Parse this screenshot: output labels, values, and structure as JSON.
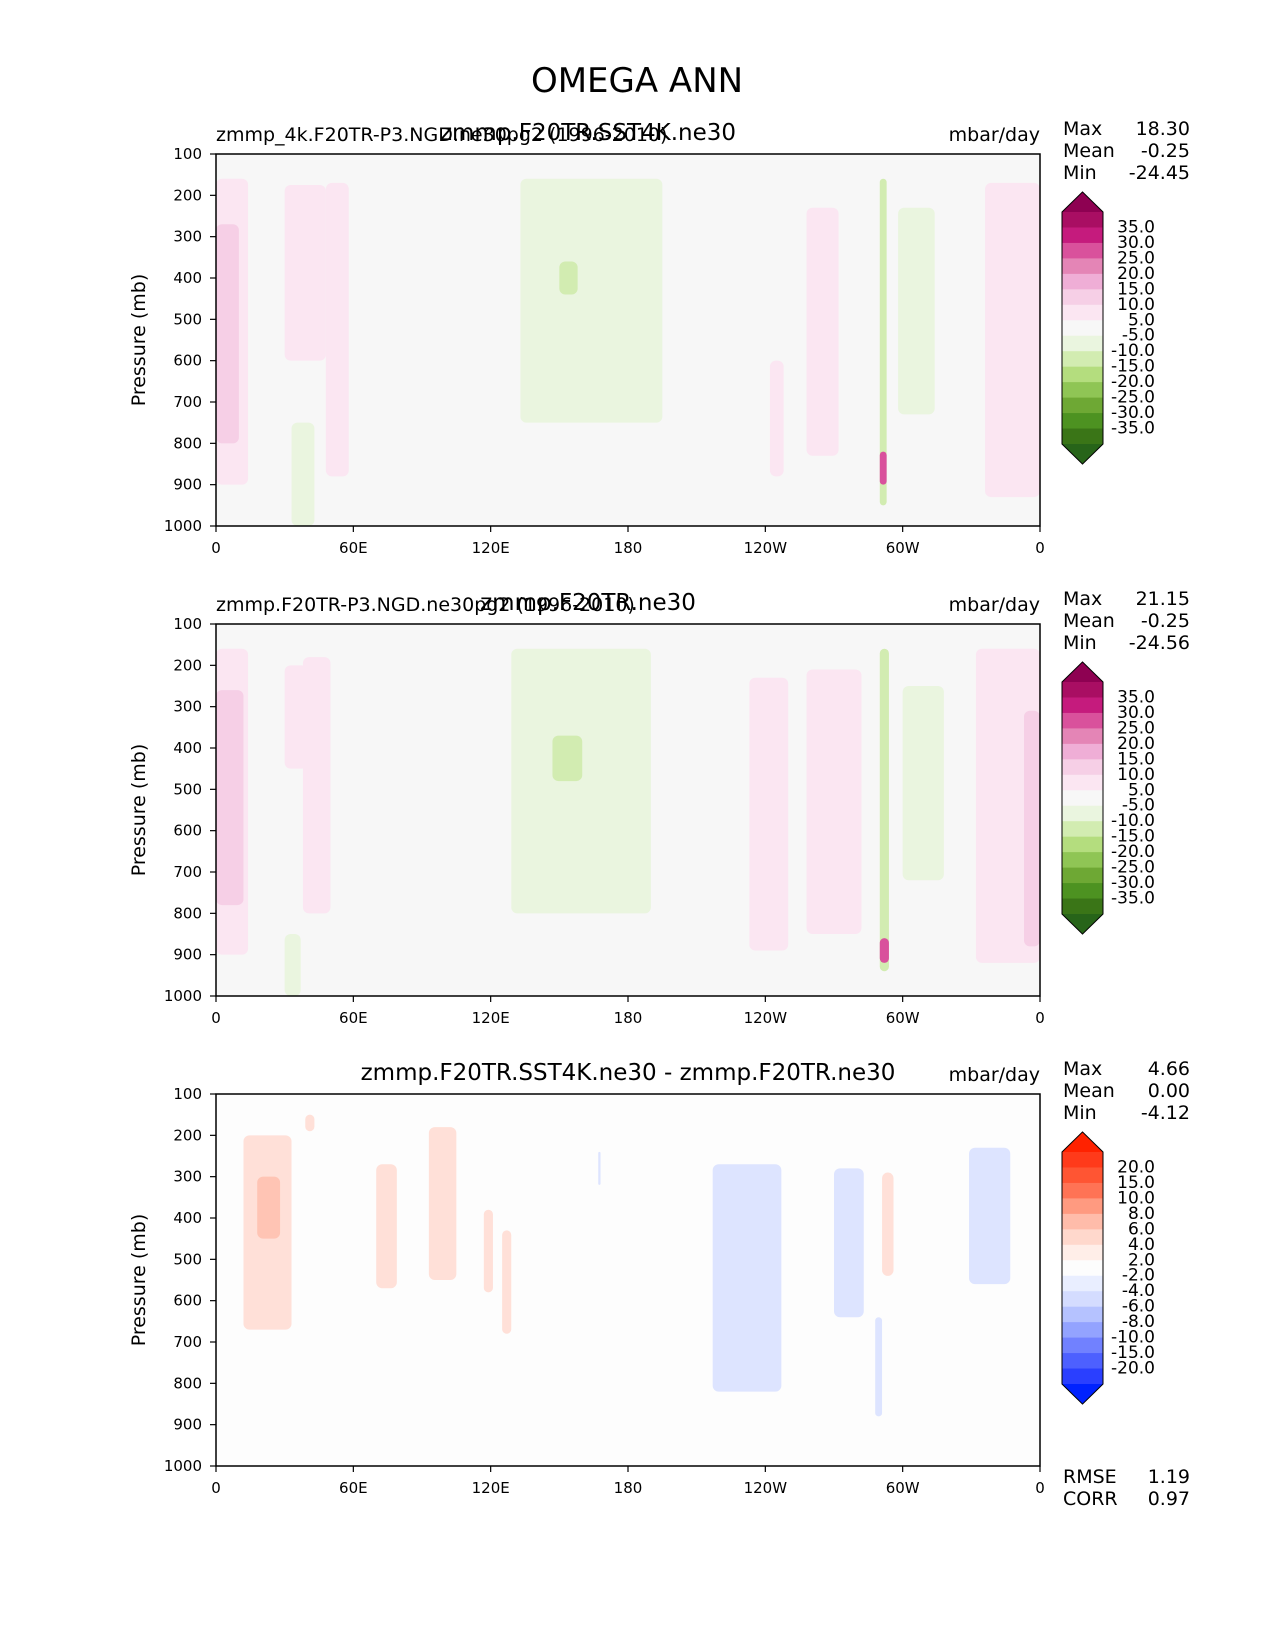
{
  "figure": {
    "title": "OMEGA ANN"
  },
  "chart_data": [
    {
      "type": "heatmap",
      "case_label": "zmmp_4k.F20TR-P3.NGD.ne30pg2 (1996-2010)",
      "title": "zmmp.F20TR.SST4K.ne30",
      "units": "mbar/day",
      "ylabel": "Pressure (mb)",
      "ylim": [
        1000,
        100
      ],
      "xlim": [
        0,
        360
      ],
      "yticks": [
        "100",
        "200",
        "300",
        "400",
        "500",
        "600",
        "700",
        "800",
        "900",
        "1000"
      ],
      "xticks": [
        "0",
        "60E",
        "120E",
        "180",
        "120W",
        "60W",
        "0"
      ],
      "stats": {
        "max_label": "Max",
        "max": "18.30",
        "mean_label": "Mean",
        "mean": "-0.25",
        "min_label": "Min",
        "min": "-24.45"
      },
      "colorbar": {
        "labels": [
          "35.0",
          "30.0",
          "25.0",
          "20.0",
          "15.0",
          "10.0",
          "5.0",
          "-5.0",
          "-10.0",
          "-15.0",
          "-20.0",
          "-25.0",
          "-30.0",
          "-35.0"
        ],
        "colors": [
          "#8e0152",
          "#a90e63",
          "#c51b7d",
          "#d9519c",
          "#e485b6",
          "#efaed6",
          "#f6cfe6",
          "#fbe6f2",
          "#f7f7f7",
          "#eaf5df",
          "#d2ecb1",
          "#b4dd7e",
          "#8fc555",
          "#6ea834",
          "#4d9221",
          "#3a7517",
          "#276419"
        ]
      },
      "fields": [
        {
          "kind": "pink",
          "level": 1,
          "lon_min": 0,
          "lon_max": 14,
          "p_top": 160,
          "p_bot": 900
        },
        {
          "kind": "pink",
          "level": 2,
          "lon_min": 0,
          "lon_max": 10,
          "p_top": 270,
          "p_bot": 800
        },
        {
          "kind": "pink",
          "level": 1,
          "lon_min": 30,
          "lon_max": 48,
          "p_top": 175,
          "p_bot": 600
        },
        {
          "kind": "pink",
          "level": 1,
          "lon_min": 48,
          "lon_max": 58,
          "p_top": 170,
          "p_bot": 880
        },
        {
          "kind": "green",
          "level": 1,
          "lon_min": 33,
          "lon_max": 43,
          "p_top": 750,
          "p_bot": 1000
        },
        {
          "kind": "green",
          "level": 1,
          "lon_min": 133,
          "lon_max": 195,
          "p_top": 160,
          "p_bot": 750
        },
        {
          "kind": "green",
          "level": 2,
          "lon_min": 150,
          "lon_max": 158,
          "p_top": 360,
          "p_bot": 440
        },
        {
          "kind": "pink",
          "level": 1,
          "lon_min": 242,
          "lon_max": 248,
          "p_top": 600,
          "p_bot": 880
        },
        {
          "kind": "pink",
          "level": 1,
          "lon_min": 258,
          "lon_max": 272,
          "p_top": 230,
          "p_bot": 830
        },
        {
          "kind": "green",
          "level": 2,
          "lon_min": 290,
          "lon_max": 293,
          "p_top": 160,
          "p_bot": 950
        },
        {
          "kind": "pink",
          "level": 3,
          "lon_min": 290,
          "lon_max": 293,
          "p_top": 820,
          "p_bot": 900
        },
        {
          "kind": "green",
          "level": 1,
          "lon_min": 298,
          "lon_max": 314,
          "p_top": 230,
          "p_bot": 730
        },
        {
          "kind": "pink",
          "level": 1,
          "lon_min": 336,
          "lon_max": 360,
          "p_top": 170,
          "p_bot": 930
        }
      ]
    },
    {
      "type": "heatmap",
      "case_label": "zmmp.F20TR-P3.NGD.ne30pg2 (1996-2010)",
      "title": "zmmp.F20TR.ne30",
      "units": "mbar/day",
      "ylabel": "Pressure (mb)",
      "ylim": [
        1000,
        100
      ],
      "xlim": [
        0,
        360
      ],
      "yticks": [
        "100",
        "200",
        "300",
        "400",
        "500",
        "600",
        "700",
        "800",
        "900",
        "1000"
      ],
      "xticks": [
        "0",
        "60E",
        "120E",
        "180",
        "120W",
        "60W",
        "0"
      ],
      "stats": {
        "max_label": "Max",
        "max": "21.15",
        "mean_label": "Mean",
        "mean": "-0.25",
        "min_label": "Min",
        "min": "-24.56"
      },
      "colorbar": {
        "labels": [
          "35.0",
          "30.0",
          "25.0",
          "20.0",
          "15.0",
          "10.0",
          "5.0",
          "-5.0",
          "-10.0",
          "-15.0",
          "-20.0",
          "-25.0",
          "-30.0",
          "-35.0"
        ],
        "colors": [
          "#8e0152",
          "#a90e63",
          "#c51b7d",
          "#d9519c",
          "#e485b6",
          "#efaed6",
          "#f6cfe6",
          "#fbe6f2",
          "#f7f7f7",
          "#eaf5df",
          "#d2ecb1",
          "#b4dd7e",
          "#8fc555",
          "#6ea834",
          "#4d9221",
          "#3a7517",
          "#276419"
        ]
      },
      "fields": [
        {
          "kind": "pink",
          "level": 1,
          "lon_min": 0,
          "lon_max": 14,
          "p_top": 160,
          "p_bot": 900
        },
        {
          "kind": "pink",
          "level": 2,
          "lon_min": 0,
          "lon_max": 12,
          "p_top": 260,
          "p_bot": 780
        },
        {
          "kind": "pink",
          "level": 1,
          "lon_min": 38,
          "lon_max": 50,
          "p_top": 180,
          "p_bot": 800
        },
        {
          "kind": "pink",
          "level": 1,
          "lon_min": 30,
          "lon_max": 40,
          "p_top": 200,
          "p_bot": 450
        },
        {
          "kind": "green",
          "level": 1,
          "lon_min": 30,
          "lon_max": 37,
          "p_top": 850,
          "p_bot": 1000
        },
        {
          "kind": "green",
          "level": 1,
          "lon_min": 129,
          "lon_max": 190,
          "p_top": 160,
          "p_bot": 800
        },
        {
          "kind": "green",
          "level": 2,
          "lon_min": 147,
          "lon_max": 160,
          "p_top": 370,
          "p_bot": 480
        },
        {
          "kind": "pink",
          "level": 1,
          "lon_min": 233,
          "lon_max": 250,
          "p_top": 230,
          "p_bot": 890
        },
        {
          "kind": "pink",
          "level": 1,
          "lon_min": 258,
          "lon_max": 282,
          "p_top": 210,
          "p_bot": 850
        },
        {
          "kind": "green",
          "level": 2,
          "lon_min": 290,
          "lon_max": 294,
          "p_top": 160,
          "p_bot": 940
        },
        {
          "kind": "pink",
          "level": 3,
          "lon_min": 290,
          "lon_max": 294,
          "p_top": 860,
          "p_bot": 920
        },
        {
          "kind": "green",
          "level": 1,
          "lon_min": 300,
          "lon_max": 318,
          "p_top": 250,
          "p_bot": 720
        },
        {
          "kind": "pink",
          "level": 1,
          "lon_min": 332,
          "lon_max": 360,
          "p_top": 160,
          "p_bot": 920
        },
        {
          "kind": "pink",
          "level": 2,
          "lon_min": 353,
          "lon_max": 360,
          "p_top": 310,
          "p_bot": 880
        }
      ]
    },
    {
      "type": "heatmap",
      "case_label": "",
      "title": "zmmp.F20TR.SST4K.ne30 - zmmp.F20TR.ne30",
      "units": "mbar/day",
      "ylabel": "Pressure (mb)",
      "ylim": [
        1000,
        100
      ],
      "xlim": [
        0,
        360
      ],
      "yticks": [
        "100",
        "200",
        "300",
        "400",
        "500",
        "600",
        "700",
        "800",
        "900",
        "1000"
      ],
      "xticks": [
        "0",
        "60E",
        "120E",
        "180",
        "120W",
        "60W",
        "0"
      ],
      "stats": {
        "max_label": "Max",
        "max": "4.66",
        "mean_label": "Mean",
        "mean": "0.00",
        "min_label": "Min",
        "min": "-4.12"
      },
      "metrics": {
        "rmse_label": "RMSE",
        "rmse": "1.19",
        "corr_label": "CORR",
        "corr": "0.97"
      },
      "colorbar": {
        "labels": [
          "20.0",
          "15.0",
          "10.0",
          "8.0",
          "6.0",
          "4.0",
          "2.0",
          "-2.0",
          "-4.0",
          "-6.0",
          "-8.0",
          "-10.0",
          "-15.0",
          "-20.0"
        ],
        "colors": [
          "#ff2200",
          "#ff3a1a",
          "#ff5533",
          "#ff7355",
          "#ff9a80",
          "#ffbcaa",
          "#ffd8cc",
          "#ffeee8",
          "#fdfdfd",
          "#e9eeff",
          "#d4dcff",
          "#b5c2ff",
          "#93a3ff",
          "#7181ff",
          "#4d60ff",
          "#2a3fff",
          "#0022ff"
        ]
      },
      "fields": [
        {
          "kind": "red",
          "level": 1,
          "lon_min": 12,
          "lon_max": 33,
          "p_top": 200,
          "p_bot": 670
        },
        {
          "kind": "red",
          "level": 2,
          "lon_min": 18,
          "lon_max": 28,
          "p_top": 300,
          "p_bot": 450
        },
        {
          "kind": "red",
          "level": 1,
          "lon_min": 39,
          "lon_max": 43,
          "p_top": 150,
          "p_bot": 190
        },
        {
          "kind": "red",
          "level": 1,
          "lon_min": 70,
          "lon_max": 79,
          "p_top": 270,
          "p_bot": 570
        },
        {
          "kind": "red",
          "level": 1,
          "lon_min": 93,
          "lon_max": 105,
          "p_top": 180,
          "p_bot": 550
        },
        {
          "kind": "red",
          "level": 1,
          "lon_min": 117,
          "lon_max": 121,
          "p_top": 380,
          "p_bot": 580
        },
        {
          "kind": "red",
          "level": 1,
          "lon_min": 125,
          "lon_max": 129,
          "p_top": 430,
          "p_bot": 680
        },
        {
          "kind": "blue",
          "level": 1,
          "lon_min": 167,
          "lon_max": 168,
          "p_top": 240,
          "p_bot": 320
        },
        {
          "kind": "blue",
          "level": 1,
          "lon_min": 217,
          "lon_max": 247,
          "p_top": 270,
          "p_bot": 820
        },
        {
          "kind": "blue",
          "level": 1,
          "lon_min": 270,
          "lon_max": 283,
          "p_top": 280,
          "p_bot": 640
        },
        {
          "kind": "blue",
          "level": 1,
          "lon_min": 288,
          "lon_max": 291,
          "p_top": 640,
          "p_bot": 880
        },
        {
          "kind": "red",
          "level": 1,
          "lon_min": 291,
          "lon_max": 296,
          "p_top": 290,
          "p_bot": 540
        },
        {
          "kind": "blue",
          "level": 1,
          "lon_min": 329,
          "lon_max": 347,
          "p_top": 230,
          "p_bot": 560
        }
      ]
    }
  ]
}
